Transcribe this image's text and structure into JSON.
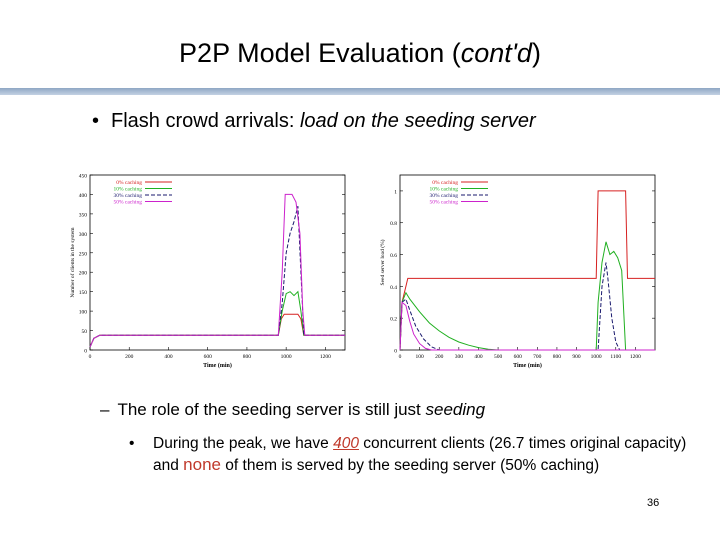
{
  "title": {
    "main": "P2P Model Evaluation (",
    "italic": "cont'd",
    "close": ")"
  },
  "bullet1": {
    "plain": "Flash crowd arrivals: ",
    "italic": "load on the seeding server"
  },
  "sub1": {
    "plain": "The role of the seeding server is still just ",
    "italic": "seeding"
  },
  "sub2": {
    "p1": "During the peak, we have ",
    "num": "400",
    "p2": " concurrent clients (26.7 times original capacity) and ",
    "none": "none",
    "p3": " of them is served by the seeding server  (50% caching)"
  },
  "page_number": "36",
  "chart_data": [
    {
      "type": "line",
      "title": "",
      "xlabel": "Time (min)",
      "ylabel": "Number of clients in the system",
      "xlim": [
        0,
        1300
      ],
      "ylim": [
        0,
        450
      ],
      "xticks": [
        0,
        200,
        400,
        600,
        800,
        1000,
        1200
      ],
      "yticks": [
        0,
        50,
        100,
        150,
        200,
        250,
        300,
        350,
        400,
        450
      ],
      "legend_position": "top-left",
      "series": [
        {
          "name": "0% caching",
          "color": "#d62020",
          "dash": "",
          "x": [
            0,
            20,
            50,
            960,
            975,
            990,
            1060,
            1075,
            1090,
            1300
          ],
          "y": [
            8,
            30,
            38,
            38,
            80,
            92,
            92,
            80,
            38,
            38
          ]
        },
        {
          "name": "10% caching",
          "color": "#20b020",
          "dash": "",
          "x": [
            0,
            20,
            50,
            960,
            980,
            1000,
            1020,
            1040,
            1060,
            1075,
            1090,
            1300
          ],
          "y": [
            8,
            30,
            38,
            38,
            100,
            145,
            150,
            140,
            150,
            100,
            38,
            38
          ]
        },
        {
          "name": "30% caching",
          "color": "#1a1a6e",
          "dash": "4,2",
          "x": [
            0,
            20,
            50,
            960,
            980,
            1000,
            1020,
            1040,
            1060,
            1075,
            1090,
            1300
          ],
          "y": [
            8,
            30,
            38,
            38,
            120,
            250,
            300,
            330,
            370,
            200,
            38,
            38
          ]
        },
        {
          "name": "50% caching",
          "color": "#cc22cc",
          "dash": "",
          "x": [
            0,
            20,
            50,
            960,
            980,
            995,
            1030,
            1050,
            1070,
            1085,
            1095,
            1300
          ],
          "y": [
            8,
            30,
            38,
            38,
            200,
            400,
            400,
            380,
            300,
            100,
            38,
            38
          ]
        }
      ]
    },
    {
      "type": "line",
      "title": "",
      "xlabel": "Time (min)",
      "ylabel": "Seed server load (%)",
      "xlim": [
        0,
        1300
      ],
      "ylim": [
        0,
        1.1
      ],
      "xticks": [
        0,
        100,
        200,
        300,
        400,
        500,
        600,
        700,
        800,
        900,
        1000,
        1100,
        1200
      ],
      "yticks": [
        0,
        0.2,
        0.4,
        0.6,
        0.8,
        1
      ],
      "legend_position": "top-right",
      "series": [
        {
          "name": "0% caching",
          "color": "#d62020",
          "dash": "",
          "x": [
            0,
            10,
            30,
            40,
            1000,
            1010,
            1150,
            1160,
            1300
          ],
          "y": [
            0,
            0.3,
            0.4,
            0.45,
            0.45,
            1.0,
            1.0,
            0.45,
            0.45
          ]
        },
        {
          "name": "10% caching",
          "color": "#20b020",
          "dash": "",
          "x": [
            0,
            10,
            30,
            50,
            100,
            150,
            200,
            250,
            300,
            350,
            400,
            450,
            500,
            1000,
            1010,
            1030,
            1050,
            1070,
            1090,
            1110,
            1130,
            1150,
            1300
          ],
          "y": [
            0,
            0.3,
            0.36,
            0.32,
            0.24,
            0.17,
            0.12,
            0.08,
            0.05,
            0.03,
            0.015,
            0.005,
            0,
            0,
            0.3,
            0.55,
            0.68,
            0.6,
            0.62,
            0.58,
            0.5,
            0,
            0
          ]
        },
        {
          "name": "30% caching",
          "color": "#1a1a6e",
          "dash": "4,2",
          "x": [
            0,
            10,
            30,
            50,
            80,
            120,
            160,
            200,
            1010,
            1030,
            1050,
            1060,
            1080,
            1100,
            1120,
            1300
          ],
          "y": [
            0,
            0.3,
            0.32,
            0.25,
            0.15,
            0.07,
            0.02,
            0,
            0,
            0.4,
            0.55,
            0.45,
            0.2,
            0.05,
            0,
            0
          ]
        },
        {
          "name": "50% caching",
          "color": "#cc22cc",
          "dash": "",
          "x": [
            0,
            10,
            30,
            50,
            70,
            100,
            130,
            160,
            1300
          ],
          "y": [
            0,
            0.3,
            0.28,
            0.18,
            0.1,
            0.04,
            0.01,
            0,
            0
          ]
        }
      ]
    }
  ]
}
